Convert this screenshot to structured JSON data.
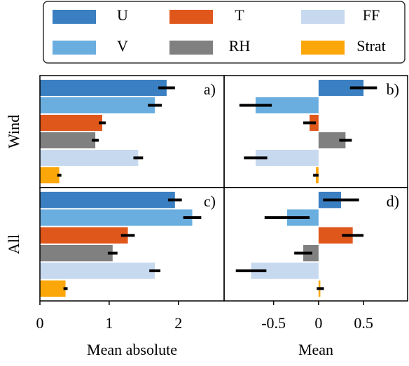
{
  "legend": [
    {
      "name": "U",
      "color": "#3a7fc1"
    },
    {
      "name": "V",
      "color": "#6aaee0"
    },
    {
      "name": "T",
      "color": "#e0571c"
    },
    {
      "name": "RH",
      "color": "#808080"
    },
    {
      "name": "FF",
      "color": "#c7d9ef"
    },
    {
      "name": "Strat",
      "color": "#fba70a"
    }
  ],
  "chart_data": [
    {
      "type": "barh",
      "panel_label": "a)",
      "ylabel": "Wind",
      "xlim": [
        0,
        2.66
      ],
      "values": [
        1.83,
        1.66,
        0.9,
        0.8,
        1.42,
        0.28
      ],
      "errors": [
        0.12,
        0.1,
        0.05,
        0.05,
        0.07,
        0.03
      ]
    },
    {
      "type": "barh",
      "panel_label": "b)",
      "xlim": [
        -1.05,
        0.99
      ],
      "values": [
        0.5,
        -0.7,
        -0.1,
        0.3,
        -0.7,
        -0.03
      ],
      "errors": [
        0.15,
        0.18,
        0.07,
        0.07,
        0.13,
        0.03
      ]
    },
    {
      "type": "barh",
      "panel_label": "c)",
      "ylabel": "All",
      "xlabel": "Mean absolute",
      "xlim": [
        0,
        2.66
      ],
      "xticks": [
        0,
        1,
        2
      ],
      "values": [
        1.95,
        2.2,
        1.27,
        1.05,
        1.66,
        0.37
      ],
      "errors": [
        0.1,
        0.13,
        0.1,
        0.07,
        0.08,
        0.03
      ]
    },
    {
      "type": "barh",
      "panel_label": "d)",
      "xlabel": "Mean",
      "xlim": [
        -1.05,
        0.99
      ],
      "xticks": [
        -0.5,
        0,
        0.5
      ],
      "values": [
        0.25,
        -0.35,
        0.38,
        -0.17,
        -0.75,
        0.02
      ],
      "errors": [
        0.2,
        0.25,
        0.12,
        0.1,
        0.17,
        0.04
      ]
    }
  ]
}
